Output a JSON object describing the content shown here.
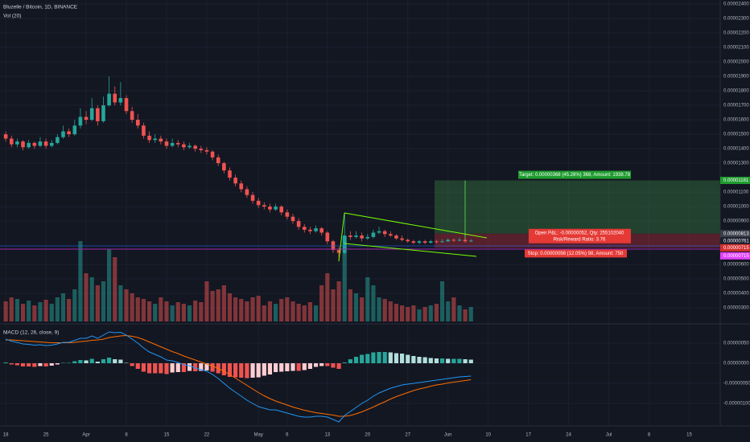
{
  "chart_data": [
    {
      "type": "candlestick",
      "title": "Bluzelle / Bitcoin, 1D, BINANCE",
      "volume_label": "Vol (20)",
      "up_color": "#26a69a",
      "down_color": "#ef5350",
      "open": [
        1.5e-05,
        1.47e-05,
        1.43e-05,
        1.45e-05,
        1.41e-05,
        1.44e-05,
        1.42e-05,
        1.45e-05,
        1.42e-05,
        1.44e-05,
        1.48e-05,
        1.52e-05,
        1.5e-05,
        1.56e-05,
        1.62e-05,
        1.6e-05,
        1.68e-05,
        1.59e-05,
        1.7e-05,
        1.78e-05,
        1.72e-05,
        1.75e-05,
        1.66e-05,
        1.6e-05,
        1.56e-05,
        1.49e-05,
        1.46e-05,
        1.47e-05,
        1.45e-05,
        1.42e-05,
        1.44e-05,
        1.43e-05,
        1.41e-05,
        1.42e-05,
        1.4e-05,
        1.39e-05,
        1.38e-05,
        1.34e-05,
        1.3e-05,
        1.25e-05,
        1.2e-05,
        1.16e-05,
        1.12e-05,
        1.08e-05,
        1.04e-05,
        1.01e-05,
        1e-05,
        9.8e-06,
        1e-05,
        9.6e-06,
        9.3e-06,
        9e-06,
        8.6e-06,
        8.4e-06,
        8.3e-06,
        8.5e-06,
        8.2e-06,
        7.6e-06,
        7e-06,
        6.8e-06,
        8e-06,
        7.9e-06,
        8e-06,
        7.8e-06,
        7.9e-06,
        8.2e-06,
        8.3e-06,
        8.1e-06,
        8e-06,
        7.8e-06,
        7.7e-06,
        7.6e-06,
        7.5e-06,
        7.6e-06,
        7.5e-06,
        7.6e-06,
        7.55e-06,
        7.6e-06,
        7.7e-06,
        7.65e-06,
        7.7e-06,
        7.6e-06
      ],
      "high": [
        1.52e-05,
        1.49e-05,
        1.47e-05,
        1.46e-05,
        1.46e-05,
        1.45e-05,
        1.48e-05,
        1.47e-05,
        1.46e-05,
        1.5e-05,
        1.56e-05,
        1.54e-05,
        1.6e-05,
        1.68e-05,
        1.66e-05,
        1.75e-05,
        1.7e-05,
        1.76e-05,
        1.9e-05,
        1.83e-05,
        1.86e-05,
        1.77e-05,
        1.69e-05,
        1.64e-05,
        1.58e-05,
        1.52e-05,
        1.5e-05,
        1.49e-05,
        1.47e-05,
        1.47e-05,
        1.46e-05,
        1.45e-05,
        1.44e-05,
        1.43e-05,
        1.42e-05,
        1.41e-05,
        1.39e-05,
        1.36e-05,
        1.31e-05,
        1.27e-05,
        1.22e-05,
        1.18e-05,
        1.14e-05,
        1.1e-05,
        1.06e-05,
        1.03e-05,
        1.02e-05,
        1.02e-05,
        1.01e-05,
        9.8e-06,
        9.5e-06,
        9.2e-06,
        8.8e-06,
        8.6e-06,
        8.7e-06,
        8.6e-06,
        8.3e-06,
        7.7e-06,
        7.2e-06,
        9.6e-06,
        8.3e-06,
        8.3e-06,
        8.2e-06,
        8.1e-06,
        8.4e-06,
        8.6e-06,
        8.4e-06,
        8.3e-06,
        8.1e-06,
        8e-06,
        7.8e-06,
        7.7e-06,
        7.7e-06,
        7.7e-06,
        7.7e-06,
        7.7e-06,
        7.75e-06,
        7.8e-06,
        7.8e-06,
        7.85e-06,
        7.8e-06,
        7.75e-06
      ],
      "low": [
        1.45e-05,
        1.41e-05,
        1.41e-05,
        1.39e-05,
        1.4e-05,
        1.4e-05,
        1.41e-05,
        1.4e-05,
        1.41e-05,
        1.43e-05,
        1.47e-05,
        1.48e-05,
        1.49e-05,
        1.54e-05,
        1.57e-05,
        1.59e-05,
        1.56e-05,
        1.58e-05,
        1.69e-05,
        1.7e-05,
        1.7e-05,
        1.64e-05,
        1.58e-05,
        1.54e-05,
        1.47e-05,
        1.44e-05,
        1.44e-05,
        1.43e-05,
        1.4e-05,
        1.41e-05,
        1.41e-05,
        1.39e-05,
        1.4e-05,
        1.38e-05,
        1.37e-05,
        1.36e-05,
        1.32e-05,
        1.28e-05,
        1.23e-05,
        1.18e-05,
        1.14e-05,
        1.1e-05,
        1.06e-05,
        1.02e-05,
        9.9e-06,
        9.8e-06,
        9.6e-06,
        9.7e-06,
        9.4e-06,
        9.1e-06,
        8.8e-06,
        8.4e-06,
        8.2e-06,
        8.1e-06,
        8.2e-06,
        8e-06,
        7.4e-06,
        6.8e-06,
        6.2e-06,
        6.7e-06,
        7.7e-06,
        7.8e-06,
        7.6e-06,
        7.7e-06,
        7.8e-06,
        8.1e-06,
        7.9e-06,
        7.9e-06,
        7.7e-06,
        7.6e-06,
        7.5e-06,
        7.4e-06,
        7.4e-06,
        7.4e-06,
        7.45e-06,
        7.45e-06,
        7.5e-06,
        7.55e-06,
        7.55e-06,
        7.6e-06,
        7.5e-06,
        7.55e-06
      ],
      "close": [
        1.47e-05,
        1.43e-05,
        1.45e-05,
        1.41e-05,
        1.44e-05,
        1.42e-05,
        1.45e-05,
        1.42e-05,
        1.44e-05,
        1.48e-05,
        1.52e-05,
        1.5e-05,
        1.56e-05,
        1.62e-05,
        1.6e-05,
        1.68e-05,
        1.59e-05,
        1.7e-05,
        1.78e-05,
        1.72e-05,
        1.75e-05,
        1.66e-05,
        1.6e-05,
        1.56e-05,
        1.49e-05,
        1.46e-05,
        1.47e-05,
        1.45e-05,
        1.42e-05,
        1.44e-05,
        1.43e-05,
        1.41e-05,
        1.42e-05,
        1.4e-05,
        1.39e-05,
        1.38e-05,
        1.34e-05,
        1.3e-05,
        1.25e-05,
        1.2e-05,
        1.16e-05,
        1.12e-05,
        1.08e-05,
        1.04e-05,
        1.01e-05,
        1e-05,
        9.8e-06,
        1e-05,
        9.6e-06,
        9.3e-06,
        9e-06,
        8.6e-06,
        8.4e-06,
        8.3e-06,
        8.5e-06,
        8.2e-06,
        7.6e-06,
        7e-06,
        6.8e-06,
        8e-06,
        7.9e-06,
        8e-06,
        7.8e-06,
        7.9e-06,
        8.2e-06,
        8.3e-06,
        8.1e-06,
        8e-06,
        7.8e-06,
        7.7e-06,
        7.6e-06,
        7.5e-06,
        7.6e-06,
        7.5e-06,
        7.6e-06,
        7.55e-06,
        7.6e-06,
        7.7e-06,
        7.65e-06,
        7.7e-06,
        7.6e-06,
        7.65e-06
      ],
      "volume": [
        25,
        30,
        28,
        22,
        26,
        20,
        24,
        27,
        22,
        30,
        35,
        28,
        40,
        100,
        60,
        55,
        45,
        50,
        90,
        80,
        45,
        40,
        35,
        30,
        28,
        25,
        22,
        30,
        25,
        20,
        24,
        22,
        20,
        26,
        24,
        50,
        38,
        40,
        45,
        35,
        30,
        28,
        25,
        30,
        32,
        20,
        25,
        22,
        28,
        30,
        25,
        22,
        20,
        24,
        20,
        45,
        60,
        40,
        50,
        105,
        40,
        35,
        30,
        55,
        45,
        30,
        28,
        25,
        22,
        20,
        18,
        20,
        15,
        18,
        20,
        22,
        50,
        25,
        30,
        20,
        15,
        18
      ],
      "xlim": [
        -1,
        124.4
      ],
      "xticks": [
        {
          "value": 0,
          "label": "18"
        },
        {
          "value": 7,
          "label": "25"
        },
        {
          "value": 14,
          "label": "Apr"
        },
        {
          "value": 21,
          "label": "8"
        },
        {
          "value": 28,
          "label": "15"
        },
        {
          "value": 35,
          "label": "22"
        },
        {
          "value": 44,
          "label": "May"
        },
        {
          "value": 49,
          "label": "6"
        },
        {
          "value": 56,
          "label": "13"
        },
        {
          "value": 63,
          "label": "20"
        },
        {
          "value": 70,
          "label": "27"
        },
        {
          "value": 77,
          "label": "Jun"
        },
        {
          "value": 84,
          "label": "10"
        },
        {
          "value": 91,
          "label": "17"
        },
        {
          "value": 98,
          "label": "24"
        },
        {
          "value": 105,
          "label": "Jul"
        },
        {
          "value": 112,
          "label": "8"
        },
        {
          "value": 119,
          "label": "15"
        }
      ],
      "ylim": [
        2.06e-06,
        2.428e-05
      ],
      "yticks": [
        {
          "value": 2.4e-05,
          "label": "0.00002400"
        },
        {
          "value": 2.3e-05,
          "label": "0.00002300"
        },
        {
          "value": 2.2e-05,
          "label": "0.00002200"
        },
        {
          "value": 2.1e-05,
          "label": "0.00002100"
        },
        {
          "value": 2e-05,
          "label": "0.00002000"
        },
        {
          "value": 1.9e-05,
          "label": "0.00001900"
        },
        {
          "value": 1.8e-05,
          "label": "0.00001800"
        },
        {
          "value": 1.7e-05,
          "label": "0.00001700"
        },
        {
          "value": 1.6e-05,
          "label": "0.00001600"
        },
        {
          "value": 1.5e-05,
          "label": "0.00001500"
        },
        {
          "value": 1.4e-05,
          "label": "0.00001400"
        },
        {
          "value": 1.3e-05,
          "label": "0.00001300"
        },
        {
          "value": 1.1e-05,
          "label": "0.00001100"
        },
        {
          "value": 1e-05,
          "label": "0.00001000"
        },
        {
          "value": 9e-06,
          "label": "0.00000900"
        },
        {
          "value": 6e-06,
          "label": "0.00000600"
        },
        {
          "value": 5e-06,
          "label": "0.00000500"
        },
        {
          "value": 4e-06,
          "label": "0.00000400"
        },
        {
          "value": 3e-06,
          "label": "0.00000300"
        }
      ],
      "grid": true,
      "markers": [
        {
          "value": 1.181e-05,
          "label": "0.00001181",
          "color": "#1e9c2e"
        },
        {
          "value": 8.13e-06,
          "label": "0.00000813",
          "color": "#3a3e4a"
        },
        {
          "value": 7.61e-06,
          "label": "0.00000761",
          "color": "#1c2030"
        },
        {
          "value": 7.15e-06,
          "label": "0.00000715",
          "color": "#d32f2f"
        },
        {
          "value": 7.15e-06,
          "label": "0.00000715",
          "color": "#e040fb"
        }
      ],
      "position": {
        "entry": 8.13e-06,
        "target": 1.181e-05,
        "stop": 7.15e-06,
        "last": 7.61e-06,
        "target_label": "Target: 0.00000368 (45.26%) 368, Amount: 1938.78",
        "pnl_label": "Open P&L: -0.00000052, Qty: 255102040",
        "ratio_label": "Risk/Reward Ratio: 3.76",
        "stop_label": "Stop: 0.00000098 (12.05%) 98, Amount: 750"
      }
    },
    {
      "type": "macd",
      "title": "MACD (12, 26, close, 9)",
      "macd": {
        "color": "#2196f3",
        "values": [
          6e-07,
          5.5e-07,
          5.2e-07,
          4.8e-07,
          4.7e-07,
          4.5e-07,
          4.6e-07,
          4.4e-07,
          4.5e-07,
          4.8e-07,
          5.2e-07,
          5.2e-07,
          5.7e-07,
          6.2e-07,
          6.2e-07,
          6.8e-07,
          6.2e-07,
          7e-07,
          7.8e-07,
          7.6e-07,
          7.7e-07,
          7e-07,
          6e-07,
          5e-07,
          3.8e-07,
          2.8e-07,
          2.2e-07,
          1.6e-07,
          8e-08,
          6e-08,
          2e-08,
          -4e-08,
          -6e-08,
          -1.2e-07,
          -1.6e-07,
          -2e-07,
          -2.8e-07,
          -3.8e-07,
          -5e-07,
          -6.2e-07,
          -7.2e-07,
          -8.2e-07,
          -9.2e-07,
          -1e-06,
          -1.08e-06,
          -1.12e-06,
          -1.16e-06,
          -1.16e-06,
          -1.2e-06,
          -1.24e-06,
          -1.28e-06,
          -1.32e-06,
          -1.34e-06,
          -1.34e-06,
          -1.32e-06,
          -1.32e-06,
          -1.34e-06,
          -1.4e-06,
          -1.46e-06,
          -1.3e-06,
          -1.2e-06,
          -1.1e-06,
          -1e-06,
          -9.2e-07,
          -8.2e-07,
          -7.4e-07,
          -6.8e-07,
          -6.2e-07,
          -5.8e-07,
          -5.4e-07,
          -5.2e-07,
          -5e-07,
          -4.8e-07,
          -4.6e-07,
          -4.4e-07,
          -4.2e-07,
          -4e-07,
          -3.8e-07,
          -3.6e-07,
          -3.4e-07,
          -3.3e-07,
          -3.2e-07
        ]
      },
      "signal": {
        "color": "#ff6d00",
        "values": [
          5.8e-07,
          5.8e-07,
          5.7e-07,
          5.6e-07,
          5.5e-07,
          5.4e-07,
          5.3e-07,
          5.2e-07,
          5.1e-07,
          5.1e-07,
          5.1e-07,
          5.1e-07,
          5.2e-07,
          5.4e-07,
          5.5e-07,
          5.7e-07,
          5.8e-07,
          6e-07,
          6.4e-07,
          6.6e-07,
          6.8e-07,
          6.9e-07,
          6.7e-07,
          6.4e-07,
          5.9e-07,
          5.3e-07,
          4.7e-07,
          4.1e-07,
          3.5e-07,
          2.9e-07,
          2.4e-07,
          1.8e-07,
          1.3e-07,
          8e-08,
          3e-08,
          -2e-08,
          -7e-08,
          -1.3e-07,
          -2e-07,
          -2.8e-07,
          -3.7e-07,
          -4.6e-07,
          -5.5e-07,
          -6.4e-07,
          -7.3e-07,
          -8.1e-07,
          -8.8e-07,
          -9.4e-07,
          -9.9e-07,
          -1.04e-06,
          -1.09e-06,
          -1.13e-06,
          -1.17e-06,
          -1.2e-06,
          -1.23e-06,
          -1.25e-06,
          -1.27e-06,
          -1.29e-06,
          -1.32e-06,
          -1.32e-06,
          -1.3e-06,
          -1.26e-06,
          -1.21e-06,
          -1.15e-06,
          -1.09e-06,
          -1.02e-06,
          -9.6e-07,
          -8.9e-07,
          -8.3e-07,
          -7.8e-07,
          -7.3e-07,
          -6.8e-07,
          -6.4e-07,
          -6.1e-07,
          -5.7e-07,
          -5.4e-07,
          -5.2e-07,
          -4.9e-07,
          -4.7e-07,
          -4.5e-07,
          -4.3e-07,
          -4.1e-07
        ]
      },
      "histogram": {
        "up_color": "#26a69a",
        "up_fade_color": "#b2dfdb",
        "down_color": "#ef5350",
        "down_fade_color": "#ffcdd2",
        "values": [
          2e-08,
          -3e-08,
          -5e-08,
          -8e-08,
          -8e-08,
          -9e-08,
          -7e-08,
          -8e-08,
          -6e-08,
          -3e-08,
          1e-08,
          1e-08,
          5e-08,
          8e-08,
          7e-08,
          1.1e-07,
          4e-08,
          1e-07,
          1.4e-07,
          1e-07,
          9e-08,
          1e-08,
          -7e-08,
          -1.4e-07,
          -2.1e-07,
          -2.5e-07,
          -2.5e-07,
          -2.5e-07,
          -2.7e-07,
          -2.3e-07,
          -2.2e-07,
          -2.2e-07,
          -1.9e-07,
          -2e-07,
          -1.9e-07,
          -1.8e-07,
          -2.1e-07,
          -2.5e-07,
          -3e-07,
          -3.4e-07,
          -3.5e-07,
          -3.6e-07,
          -3.7e-07,
          -3.6e-07,
          -3.5e-07,
          -3.1e-07,
          -2.8e-07,
          -2.2e-07,
          -2.1e-07,
          -2e-07,
          -1.9e-07,
          -1.9e-07,
          -1.7e-07,
          -1.4e-07,
          -9e-08,
          -7e-08,
          -7e-08,
          -1.1e-07,
          -1.4e-07,
          2e-08,
          1e-07,
          1.6e-07,
          2.1e-07,
          2.3e-07,
          2.7e-07,
          2.8e-07,
          2.8e-07,
          2.7e-07,
          2.5e-07,
          2.4e-07,
          2.1e-07,
          1.8e-07,
          1.6e-07,
          1.5e-07,
          1.3e-07,
          1.2e-07,
          1.2e-07,
          1.1e-07,
          1.1e-07,
          1.1e-07,
          1e-07,
          9e-08
        ]
      },
      "ylim": [
        -1.56e-06,
        9.4e-07
      ],
      "yticks": [
        {
          "value": 5e-07,
          "label": "0.00000050"
        },
        {
          "value": 0,
          "label": "0.00000000"
        },
        {
          "value": -5e-07,
          "label": "-0.00000050"
        },
        {
          "value": -1e-06,
          "label": "-0.00000100"
        }
      ]
    }
  ]
}
